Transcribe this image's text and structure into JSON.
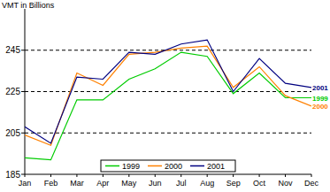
{
  "chart_data": {
    "type": "line",
    "y_label": "VMT in Billions",
    "categories": [
      "Jan",
      "Feb",
      "Mar",
      "Apr",
      "May",
      "Jun",
      "Jul",
      "Aug",
      "Sep",
      "Oct",
      "Nov",
      "Dec"
    ],
    "series": [
      {
        "name": "1999",
        "color": "#00cc00",
        "values": [
          193,
          192,
          221,
          221,
          231,
          236,
          244,
          242,
          224,
          234,
          222,
          222
        ]
      },
      {
        "name": "2000",
        "color": "#ff8000",
        "values": [
          204,
          199,
          234,
          228,
          243,
          244,
          246,
          247,
          227,
          237,
          223,
          218
        ]
      },
      {
        "name": "2001",
        "color": "#000080",
        "values": [
          208,
          200,
          232,
          231,
          244,
          243,
          248,
          250,
          225,
          241,
          229,
          227
        ]
      }
    ],
    "ylim": [
      185,
      265
    ],
    "yticks": [
      185,
      205,
      225,
      245
    ],
    "grid": true,
    "legend": "bottom"
  }
}
